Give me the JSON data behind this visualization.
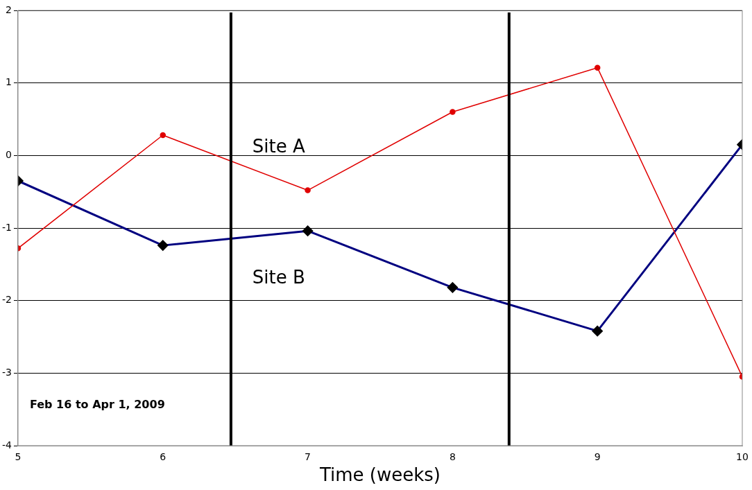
{
  "chart_data": {
    "type": "line",
    "xlabel": "Time (weeks)",
    "x": [
      5,
      6,
      7,
      8,
      9,
      10
    ],
    "series": [
      {
        "name": "Site A",
        "color": "#e00000",
        "marker": "circle",
        "values": [
          -1.28,
          0.28,
          -0.48,
          0.6,
          1.21,
          -3.05
        ]
      },
      {
        "name": "Site B",
        "color": "#000080",
        "marker": "diamond",
        "values": [
          -0.35,
          -1.24,
          -1.04,
          -1.82,
          -2.42,
          0.15
        ]
      }
    ],
    "xlim": [
      5,
      10
    ],
    "xticks": [
      5,
      6,
      7,
      8,
      9,
      10
    ],
    "ylim": [
      -4,
      2
    ],
    "yticks": [
      -4,
      -3,
      -2,
      -1,
      0,
      1,
      2
    ],
    "grid": "y",
    "legend": false,
    "ref_lines": [
      {
        "axis": "x",
        "value": 6.47,
        "color": "#000000"
      },
      {
        "axis": "x",
        "value": 8.39,
        "color": "#000000"
      }
    ],
    "annotations": [
      "Feb 16 to Apr 1, 2009"
    ]
  }
}
